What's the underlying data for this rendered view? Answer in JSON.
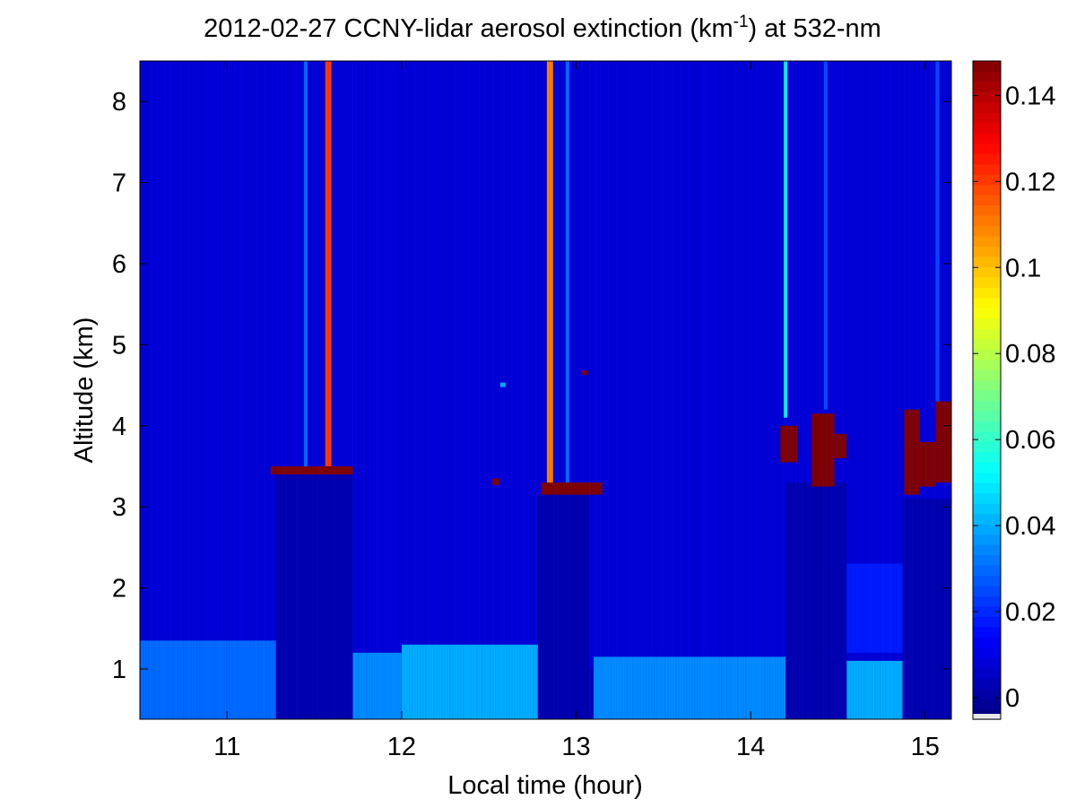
{
  "chart_data": {
    "type": "heatmap",
    "title_main": "2012-02-27 CCNY-lidar aerosol extinction (km",
    "title_sup": "-1",
    "title_tail": ") at 532-nm",
    "xlabel": "Local time (hour)",
    "ylabel": "Altitude (km)",
    "xlim": [
      10.5,
      15.15
    ],
    "ylim": [
      0.38,
      8.5
    ],
    "clim": [
      -0.005,
      0.148
    ],
    "colormap": "jet",
    "x_ticks": [
      11,
      12,
      13,
      14,
      15
    ],
    "y_ticks": [
      1,
      2,
      3,
      4,
      5,
      6,
      7,
      8
    ],
    "colorbar_ticks": [
      0,
      0.02,
      0.04,
      0.06,
      0.08,
      0.1,
      0.12,
      0.14
    ],
    "x_tick_labels": [
      "11",
      "12",
      "13",
      "14",
      "15"
    ],
    "y_tick_labels": [
      "1",
      "2",
      "3",
      "4",
      "5",
      "6",
      "7",
      "8"
    ],
    "colorbar_tick_labels": [
      "0",
      "0.02",
      "0.04",
      "0.06",
      "0.08",
      "0.1",
      "0.12",
      "0.14"
    ],
    "background_extinction": 0.008,
    "boundary_layer": [
      {
        "t_start": 10.5,
        "t_end": 11.3,
        "top_km": 1.35,
        "extinction": 0.03
      },
      {
        "t_start": 11.3,
        "t_end": 12.0,
        "top_km": 1.2,
        "extinction": 0.035
      },
      {
        "t_start": 12.0,
        "t_end": 12.8,
        "top_km": 1.3,
        "extinction": 0.04
      },
      {
        "t_start": 12.8,
        "t_end": 13.1,
        "top_km": 1.0,
        "extinction": 0.004
      },
      {
        "t_start": 13.1,
        "t_end": 14.2,
        "top_km": 1.15,
        "extinction": 0.035
      },
      {
        "t_start": 14.2,
        "t_end": 14.55,
        "top_km": 1.0,
        "extinction": 0.004
      },
      {
        "t_start": 14.55,
        "t_end": 15.15,
        "top_km": 1.1,
        "extinction": 0.04
      }
    ],
    "aerosol_layer": [
      {
        "t_start": 14.55,
        "t_end": 15.15,
        "base_km": 1.2,
        "top_km": 2.3,
        "extinction": 0.018
      }
    ],
    "attenuated_regions": [
      {
        "t_start": 11.28,
        "t_end": 11.72,
        "base_km": 0.38,
        "top_km": 3.4
      },
      {
        "t_start": 12.78,
        "t_end": 13.08,
        "base_km": 0.38,
        "top_km": 3.15
      },
      {
        "t_start": 14.2,
        "t_end": 14.55,
        "base_km": 0.38,
        "top_km": 3.3
      },
      {
        "t_start": 14.87,
        "t_end": 15.15,
        "base_km": 0.38,
        "top_km": 3.1
      }
    ],
    "vertical_streaks": [
      {
        "t": 11.58,
        "base_km": 3.5,
        "top_km": 8.5,
        "extinction": 0.12
      },
      {
        "t": 11.45,
        "base_km": 3.5,
        "top_km": 8.5,
        "extinction": 0.03
      },
      {
        "t": 12.85,
        "base_km": 3.25,
        "top_km": 8.5,
        "extinction": 0.11
      },
      {
        "t": 12.95,
        "base_km": 3.25,
        "top_km": 8.5,
        "extinction": 0.03
      },
      {
        "t": 14.2,
        "base_km": 4.1,
        "top_km": 8.5,
        "extinction": 0.05
      },
      {
        "t": 14.43,
        "base_km": 4.2,
        "top_km": 8.5,
        "extinction": 0.025
      },
      {
        "t": 15.07,
        "base_km": 4.3,
        "top_km": 8.5,
        "extinction": 0.025
      }
    ],
    "cloud_layers": [
      {
        "t_start": 11.25,
        "t_end": 11.72,
        "base_km": 3.4,
        "top_km": 3.5,
        "extinction": 0.148
      },
      {
        "t_start": 12.52,
        "t_end": 12.56,
        "base_km": 3.27,
        "top_km": 3.35,
        "extinction": 0.148
      },
      {
        "t_start": 12.8,
        "t_end": 13.15,
        "base_km": 3.15,
        "top_km": 3.3,
        "extinction": 0.148
      },
      {
        "t_start": 14.17,
        "t_end": 14.27,
        "base_km": 3.55,
        "top_km": 4.0,
        "extinction": 0.148
      },
      {
        "t_start": 14.35,
        "t_end": 14.48,
        "base_km": 3.25,
        "top_km": 4.15,
        "extinction": 0.148
      },
      {
        "t_start": 14.48,
        "t_end": 14.55,
        "base_km": 3.6,
        "top_km": 3.9,
        "extinction": 0.148
      },
      {
        "t_start": 14.88,
        "t_end": 14.97,
        "base_km": 3.15,
        "top_km": 4.2,
        "extinction": 0.148
      },
      {
        "t_start": 14.97,
        "t_end": 15.06,
        "base_km": 3.25,
        "top_km": 3.8,
        "extinction": 0.148
      },
      {
        "t_start": 15.06,
        "t_end": 15.15,
        "base_km": 3.3,
        "top_km": 4.3,
        "extinction": 0.148
      }
    ],
    "small_features": [
      {
        "t": 13.05,
        "altitude_km": 4.65,
        "extinction": 0.148
      },
      {
        "t": 12.58,
        "altitude_km": 4.5,
        "extinction": 0.04
      }
    ]
  }
}
